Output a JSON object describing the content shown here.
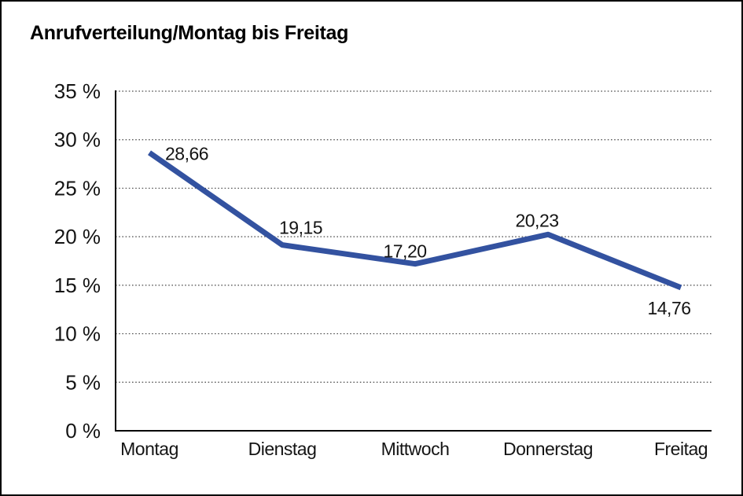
{
  "window": {
    "background": "#ffffff",
    "border_color": "#000000"
  },
  "chart_data": {
    "type": "line",
    "title": "Anrufverteilung/Montag bis Freitag",
    "categories": [
      "Montag",
      "Dienstag",
      "Mittwoch",
      "Donnerstag",
      "Freitag"
    ],
    "series": [
      {
        "values": [
          28.66,
          19.15,
          17.2,
          20.23,
          14.76
        ],
        "color": "#3352A0"
      }
    ],
    "data_labels": [
      "28,66",
      "19,15",
      "17,20",
      "20,23",
      "14,76"
    ],
    "y_ticks": [
      0,
      5,
      10,
      15,
      20,
      25,
      30,
      35
    ],
    "y_tick_labels": [
      "0 %",
      "5 %",
      "10 %",
      "15 %",
      "20 %",
      "25 %",
      "30 %",
      "35 %"
    ],
    "ylim": [
      0,
      35
    ],
    "xlabel": "",
    "ylabel": "",
    "grid": "horizontal-dotted",
    "legend": "none"
  }
}
